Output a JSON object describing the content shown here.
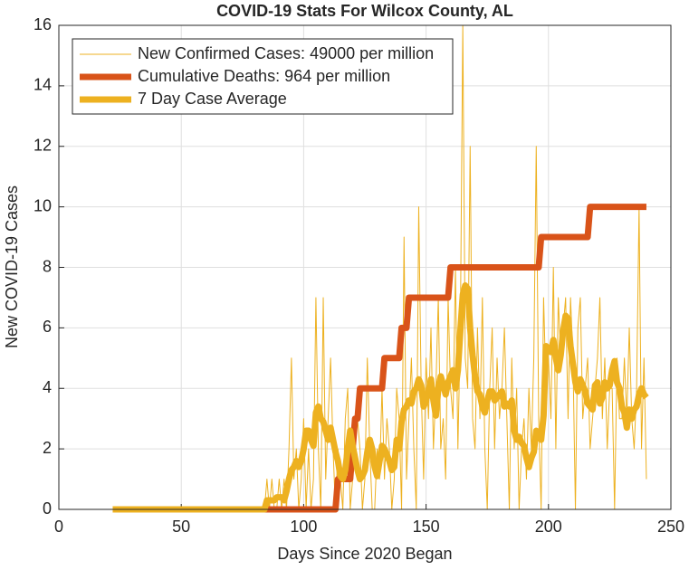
{
  "chart_data": {
    "type": "line",
    "title": "COVID-19 Stats For Wilcox County, AL",
    "xlabel": "Days Since 2020 Began",
    "ylabel": "New COVID-19 Cases",
    "xlim": [
      0,
      250
    ],
    "xticks": [
      0,
      50,
      100,
      150,
      200,
      250
    ],
    "ylim": [
      0,
      16
    ],
    "yticks": [
      0,
      2,
      4,
      6,
      8,
      10,
      12,
      14,
      16
    ],
    "grid": true,
    "legend": "upper left",
    "x": [
      22,
      23,
      24,
      25,
      26,
      27,
      28,
      29,
      30,
      31,
      32,
      33,
      34,
      35,
      36,
      37,
      38,
      39,
      40,
      41,
      42,
      43,
      44,
      45,
      46,
      47,
      48,
      49,
      50,
      51,
      52,
      53,
      54,
      55,
      56,
      57,
      58,
      59,
      60,
      61,
      62,
      63,
      64,
      65,
      66,
      67,
      68,
      69,
      70,
      71,
      72,
      73,
      74,
      75,
      76,
      77,
      78,
      79,
      80,
      81,
      82,
      83,
      84,
      85,
      86,
      87,
      88,
      89,
      90,
      91,
      92,
      93,
      94,
      95,
      96,
      97,
      98,
      99,
      100,
      101,
      102,
      103,
      104,
      105,
      106,
      107,
      108,
      109,
      110,
      111,
      112,
      113,
      114,
      115,
      116,
      117,
      118,
      119,
      120,
      121,
      122,
      123,
      124,
      125,
      126,
      127,
      128,
      129,
      130,
      131,
      132,
      133,
      134,
      135,
      136,
      137,
      138,
      139,
      140,
      141,
      142,
      143,
      144,
      145,
      146,
      147,
      148,
      149,
      150,
      151,
      152,
      153,
      154,
      155,
      156,
      157,
      158,
      159,
      160,
      161,
      162,
      163,
      164,
      165,
      166,
      167,
      168,
      169,
      170,
      171,
      172,
      173,
      174,
      175,
      176,
      177,
      178,
      179,
      180,
      181,
      182,
      183,
      184,
      185,
      186,
      187,
      188,
      189,
      190,
      191,
      192,
      193,
      194,
      195,
      196,
      197,
      198,
      199,
      200,
      201,
      202,
      203,
      204,
      205,
      206,
      207,
      208,
      209,
      210,
      211,
      212,
      213,
      214,
      215,
      216,
      217,
      218,
      219,
      220,
      221,
      222,
      223,
      224,
      225,
      226,
      227,
      228,
      229,
      230,
      231,
      232,
      233,
      234,
      235,
      236,
      237,
      238,
      239,
      240
    ],
    "series": [
      {
        "name": "New Confirmed Cases: 49000 per million",
        "color": "#EDB120",
        "values": [
          0,
          0,
          0,
          0,
          0,
          0,
          0,
          0,
          0,
          0,
          0,
          0,
          0,
          0,
          0,
          0,
          0,
          0,
          0,
          0,
          0,
          0,
          0,
          0,
          0,
          0,
          0,
          0,
          0,
          0,
          0,
          0,
          0,
          0,
          0,
          0,
          0,
          0,
          0,
          0,
          0,
          0,
          0,
          0,
          0,
          0,
          0,
          0,
          0,
          0,
          0,
          0,
          0,
          0,
          0,
          0,
          0,
          0,
          0,
          0,
          0,
          0,
          0,
          1,
          0,
          1,
          0,
          0,
          1,
          0,
          1,
          0,
          2,
          5,
          1,
          2,
          0,
          1,
          3,
          0,
          2,
          0,
          1,
          7,
          2,
          0,
          7,
          1,
          3,
          5,
          2,
          0,
          2,
          1,
          0,
          3,
          4,
          0,
          1,
          2,
          3,
          2,
          0,
          1,
          5,
          2,
          0,
          0,
          2,
          1,
          4,
          1,
          3,
          2,
          0,
          1,
          4,
          3,
          0,
          9,
          1,
          3,
          5,
          2,
          0,
          10,
          4,
          1,
          5,
          3,
          6,
          2,
          4,
          7,
          2,
          3,
          1,
          7,
          4,
          3,
          8,
          2,
          6,
          16,
          5,
          4,
          12,
          3,
          2,
          6,
          3,
          7,
          2,
          0,
          4,
          6,
          2,
          5,
          3,
          4,
          6,
          3,
          0,
          5,
          2,
          4,
          0,
          2,
          3,
          1,
          4,
          2,
          5,
          12,
          3,
          0,
          7,
          4,
          5,
          3,
          8,
          2,
          7,
          5,
          6,
          7,
          3,
          7,
          5,
          0,
          6,
          7,
          3,
          4,
          5,
          2,
          3,
          4,
          5,
          7,
          3,
          5,
          2,
          4,
          4,
          0,
          5,
          3,
          3,
          5,
          3,
          6,
          3,
          2,
          4,
          10,
          2,
          5,
          1
        ]
      },
      {
        "name": "Cumulative Deaths: 964 per million",
        "color": "#D95319",
        "values": [
          0,
          0,
          0,
          0,
          0,
          0,
          0,
          0,
          0,
          0,
          0,
          0,
          0,
          0,
          0,
          0,
          0,
          0,
          0,
          0,
          0,
          0,
          0,
          0,
          0,
          0,
          0,
          0,
          0,
          0,
          0,
          0,
          0,
          0,
          0,
          0,
          0,
          0,
          0,
          0,
          0,
          0,
          0,
          0,
          0,
          0,
          0,
          0,
          0,
          0,
          0,
          0,
          0,
          0,
          0,
          0,
          0,
          0,
          0,
          0,
          0,
          0,
          0,
          0,
          0,
          0,
          0,
          0,
          0,
          0,
          0,
          0,
          0,
          0,
          0,
          0,
          0,
          0,
          0,
          0,
          0,
          0,
          0,
          0,
          0,
          0,
          0,
          0,
          0,
          0,
          0,
          0,
          1,
          1,
          1,
          1,
          1,
          1,
          2,
          3,
          3,
          4,
          4,
          4,
          4,
          4,
          4,
          4,
          4,
          4,
          4,
          5,
          5,
          5,
          5,
          5,
          5,
          5,
          6,
          6,
          6,
          7,
          7,
          7,
          7,
          7,
          7,
          7,
          7,
          7,
          7,
          7,
          7,
          7,
          7,
          7,
          7,
          7,
          8,
          8,
          8,
          8,
          8,
          8,
          8,
          8,
          8,
          8,
          8,
          8,
          8,
          8,
          8,
          8,
          8,
          8,
          8,
          8,
          8,
          8,
          8,
          8,
          8,
          8,
          8,
          8,
          8,
          8,
          8,
          8,
          8,
          8,
          8,
          8,
          8,
          9,
          9,
          9,
          9,
          9,
          9,
          9,
          9,
          9,
          9,
          9,
          9,
          9,
          9,
          9,
          9,
          9,
          9,
          9,
          9,
          10,
          10,
          10,
          10,
          10,
          10,
          10,
          10,
          10,
          10,
          10,
          10,
          10,
          10,
          10,
          10,
          10,
          10,
          10,
          10,
          10,
          10,
          10,
          10
        ]
      },
      {
        "name": "7 Day Case Average",
        "color": "#EDB120",
        "values": [
          0,
          0,
          0,
          0,
          0,
          0,
          0,
          0,
          0,
          0,
          0,
          0,
          0,
          0,
          0,
          0,
          0,
          0,
          0,
          0,
          0,
          0,
          0,
          0,
          0,
          0,
          0,
          0,
          0,
          0,
          0,
          0,
          0,
          0,
          0,
          0,
          0,
          0,
          0,
          0,
          0,
          0,
          0,
          0,
          0,
          0,
          0,
          0,
          0,
          0,
          0,
          0,
          0,
          0,
          0,
          0,
          0,
          0,
          0,
          0,
          0,
          0,
          0,
          0.3,
          0.3,
          0.3,
          0.3,
          0.4,
          0.4,
          0.4,
          0.3,
          0.6,
          1,
          1.3,
          1.4,
          1.6,
          1.4,
          1.6,
          2,
          2.6,
          2.6,
          2.3,
          2.1,
          3.2,
          3.4,
          3,
          2.9,
          2.6,
          2.3,
          2.7,
          2.3,
          1.9,
          1.6,
          1.1,
          1,
          1.3,
          2,
          2.6,
          2.1,
          1.7,
          1.3,
          1,
          1.1,
          1.3,
          1.9,
          2.3,
          2,
          1.4,
          1.1,
          1.6,
          2.1,
          2,
          1.8,
          1.6,
          1.3,
          1.4,
          2.3,
          2,
          2.9,
          3.3,
          3.4,
          3.6,
          3.5,
          3.9,
          4,
          4.3,
          4.1,
          3.4,
          3.6,
          3.9,
          4.3,
          3.6,
          3.1,
          4,
          4.4,
          4.1,
          3.8,
          4.2,
          4.4,
          4.6,
          4,
          4.6,
          5.9,
          7.1,
          7.4,
          7.3,
          6,
          5.1,
          4.4,
          3.9,
          3.8,
          3.4,
          3.2,
          3.6,
          3.9,
          3.9,
          3.6,
          3.7,
          3.8,
          3.9,
          3.4,
          3.5,
          3.4,
          3.6,
          2.6,
          2.3,
          2.4,
          2.2,
          2.1,
          1.7,
          1.4,
          1.7,
          1.9,
          2.6,
          2.4,
          2.3,
          3.1,
          5.4,
          5.3,
          5.2,
          5.6,
          5,
          4.6,
          5.1,
          5.9,
          6.4,
          6.3,
          5.4,
          4.8,
          4.2,
          3.9,
          4.3,
          4.1,
          3.9,
          3.5,
          3.4,
          3.3,
          4.1,
          4.2,
          3.5,
          3.7,
          4.2,
          4,
          4.1,
          4.6,
          4.9,
          4.2,
          4,
          3.4,
          3.2,
          2.7,
          3.3,
          3,
          3.3,
          3.4,
          3.8,
          4,
          3.8,
          3.7
        ]
      }
    ]
  }
}
